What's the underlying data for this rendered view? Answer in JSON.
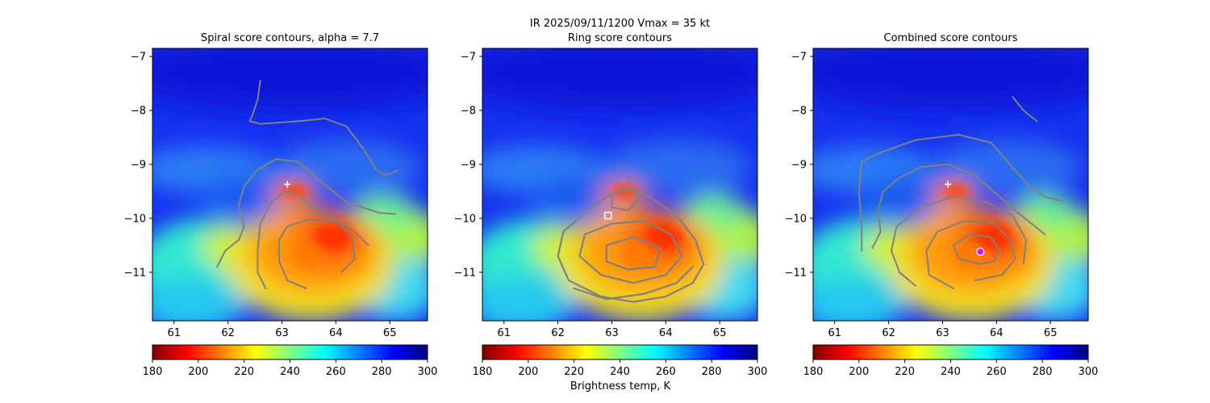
{
  "figure": {
    "suptitle_line1": "IR  2025/09/11/1200    Vmax = 35 kt",
    "colorbar_label": "Brightness temp, K"
  },
  "colormap": {
    "name": "jet_r",
    "stops": [
      "#800000",
      "#ff0000",
      "#ff8000",
      "#ffff00",
      "#80ff80",
      "#00ffff",
      "#0080ff",
      "#0000ff",
      "#000080"
    ]
  },
  "colors": {
    "contour": "#808080",
    "marker_cross": "#ffffff",
    "marker_square": "#ffffff",
    "marker_center": "#ff00ff"
  },
  "chart_data": [
    {
      "type": "heatmap",
      "title": "Spiral score contours, alpha =  7.7",
      "xlim": [
        60.6,
        65.7
      ],
      "ylim": [
        -11.9,
        -6.85
      ],
      "xticks": [
        61,
        62,
        63,
        64,
        65
      ],
      "yticks": [
        -7,
        -8,
        -9,
        -10,
        -11
      ],
      "colorbar": {
        "range": [
          180,
          300
        ],
        "ticks": [
          180,
          200,
          220,
          240,
          260,
          280,
          300
        ]
      },
      "markers": [
        {
          "kind": "cross",
          "x": 63.1,
          "y": -9.37
        }
      ],
      "contours": [
        [
          [
            62.6,
            -7.45
          ],
          [
            62.55,
            -7.8
          ],
          [
            62.45,
            -8.1
          ],
          [
            62.4,
            -8.2
          ],
          [
            62.6,
            -8.25
          ],
          [
            63.3,
            -8.2
          ],
          [
            63.8,
            -8.15
          ],
          [
            64.2,
            -8.3
          ],
          [
            64.5,
            -8.7
          ],
          [
            64.75,
            -9.1
          ],
          [
            64.9,
            -9.2
          ],
          [
            65.15,
            -9.12
          ]
        ],
        [
          [
            61.8,
            -10.9
          ],
          [
            61.95,
            -10.6
          ],
          [
            62.2,
            -10.4
          ],
          [
            62.3,
            -10.15
          ],
          [
            62.2,
            -9.75
          ],
          [
            62.3,
            -9.4
          ],
          [
            62.55,
            -9.1
          ],
          [
            62.9,
            -8.9
          ],
          [
            63.3,
            -8.95
          ],
          [
            63.7,
            -9.3
          ],
          [
            64.2,
            -9.7
          ],
          [
            64.8,
            -9.9
          ],
          [
            65.1,
            -9.92
          ]
        ],
        [
          [
            62.7,
            -11.3
          ],
          [
            62.55,
            -11.0
          ],
          [
            62.55,
            -10.6
          ],
          [
            62.6,
            -10.1
          ],
          [
            62.8,
            -9.7
          ],
          [
            63.05,
            -9.5
          ],
          [
            63.35,
            -9.6
          ],
          [
            63.5,
            -9.75
          ],
          [
            63.8,
            -9.95
          ],
          [
            64.3,
            -10.2
          ],
          [
            64.6,
            -10.5
          ]
        ],
        [
          [
            63.45,
            -11.3
          ],
          [
            63.1,
            -11.15
          ],
          [
            62.95,
            -10.8
          ],
          [
            62.95,
            -10.4
          ],
          [
            63.1,
            -10.15
          ],
          [
            63.5,
            -10.02
          ],
          [
            64.0,
            -10.05
          ],
          [
            64.3,
            -10.35
          ],
          [
            64.35,
            -10.75
          ],
          [
            64.1,
            -11.0
          ]
        ]
      ]
    },
    {
      "type": "heatmap",
      "title": "Ring score contours",
      "xlim": [
        60.6,
        65.7
      ],
      "ylim": [
        -11.9,
        -6.85
      ],
      "xticks": [
        61,
        62,
        63,
        64,
        65
      ],
      "yticks": [
        -7,
        -8,
        -9,
        -10,
        -11
      ],
      "colorbar": {
        "range": [
          180,
          300
        ],
        "ticks": [
          180,
          200,
          220,
          240,
          260,
          280,
          300
        ]
      },
      "markers": [
        {
          "kind": "square",
          "x": 62.93,
          "y": -9.95
        }
      ],
      "contours": [
        [
          [
            62.9,
            -9.6
          ],
          [
            63.3,
            -9.45
          ],
          [
            63.7,
            -9.6
          ],
          [
            64.2,
            -9.95
          ],
          [
            64.55,
            -10.4
          ],
          [
            64.7,
            -10.85
          ],
          [
            64.5,
            -11.2
          ],
          [
            64.0,
            -11.45
          ],
          [
            63.4,
            -11.55
          ],
          [
            62.8,
            -11.45
          ],
          [
            62.2,
            -11.15
          ],
          [
            62.0,
            -10.7
          ],
          [
            62.1,
            -10.25
          ],
          [
            62.5,
            -9.9
          ],
          [
            62.9,
            -9.6
          ]
        ],
        [
          [
            62.5,
            -10.3
          ],
          [
            63.0,
            -10.1
          ],
          [
            63.6,
            -10.05
          ],
          [
            64.1,
            -10.3
          ],
          [
            64.3,
            -10.7
          ],
          [
            64.0,
            -11.05
          ],
          [
            63.4,
            -11.2
          ],
          [
            62.8,
            -11.05
          ],
          [
            62.4,
            -10.7
          ],
          [
            62.5,
            -10.3
          ]
        ],
        [
          [
            62.9,
            -10.5
          ],
          [
            63.4,
            -10.35
          ],
          [
            63.9,
            -10.55
          ],
          [
            63.8,
            -10.9
          ],
          [
            63.3,
            -10.95
          ],
          [
            62.9,
            -10.8
          ],
          [
            62.9,
            -10.5
          ]
        ],
        [
          [
            63.0,
            -9.55
          ],
          [
            63.4,
            -9.45
          ],
          [
            63.5,
            -9.65
          ],
          [
            63.3,
            -9.85
          ],
          [
            63.0,
            -9.8
          ],
          [
            63.0,
            -9.55
          ]
        ],
        [
          [
            62.3,
            -11.3
          ],
          [
            62.9,
            -11.5
          ],
          [
            63.6,
            -11.4
          ],
          [
            64.2,
            -11.2
          ],
          [
            64.5,
            -10.9
          ]
        ]
      ]
    },
    {
      "type": "heatmap",
      "title": "Combined score contours",
      "xlim": [
        60.6,
        65.7
      ],
      "ylim": [
        -11.9,
        -6.85
      ],
      "xticks": [
        61,
        62,
        63,
        64,
        65
      ],
      "yticks": [
        -7,
        -8,
        -9,
        -10,
        -11
      ],
      "colorbar": {
        "range": [
          180,
          300
        ],
        "ticks": [
          180,
          200,
          220,
          240,
          260,
          280,
          300
        ]
      },
      "markers": [
        {
          "kind": "cross",
          "x": 63.1,
          "y": -9.37
        },
        {
          "kind": "center",
          "x": 63.7,
          "y": -10.62
        }
      ],
      "contours": [
        [
          [
            64.3,
            -7.75
          ],
          [
            64.5,
            -8.0
          ],
          [
            64.75,
            -8.2
          ]
        ],
        [
          [
            61.5,
            -10.6
          ],
          [
            61.5,
            -10.1
          ],
          [
            61.45,
            -9.5
          ],
          [
            61.5,
            -8.95
          ],
          [
            61.8,
            -8.8
          ],
          [
            62.5,
            -8.55
          ],
          [
            63.3,
            -8.45
          ],
          [
            63.9,
            -8.6
          ],
          [
            64.25,
            -9.0
          ],
          [
            64.6,
            -9.4
          ],
          [
            64.9,
            -9.6
          ],
          [
            65.2,
            -9.68
          ]
        ],
        [
          [
            61.7,
            -10.55
          ],
          [
            61.85,
            -10.25
          ],
          [
            61.8,
            -9.85
          ],
          [
            61.9,
            -9.5
          ],
          [
            62.2,
            -9.25
          ],
          [
            62.6,
            -9.05
          ],
          [
            63.1,
            -9.0
          ],
          [
            63.6,
            -9.2
          ],
          [
            64.0,
            -9.55
          ],
          [
            64.4,
            -9.9
          ],
          [
            64.9,
            -10.3
          ]
        ],
        [
          [
            62.5,
            -11.25
          ],
          [
            62.2,
            -11.0
          ],
          [
            62.05,
            -10.6
          ],
          [
            62.15,
            -10.15
          ],
          [
            62.6,
            -9.8
          ],
          [
            63.2,
            -9.6
          ],
          [
            63.8,
            -9.7
          ],
          [
            64.3,
            -9.95
          ],
          [
            64.55,
            -10.4
          ],
          [
            64.5,
            -10.85
          ]
        ],
        [
          [
            63.2,
            -11.3
          ],
          [
            62.75,
            -11.05
          ],
          [
            62.7,
            -10.6
          ],
          [
            62.9,
            -10.25
          ],
          [
            63.4,
            -10.05
          ],
          [
            63.95,
            -10.1
          ],
          [
            64.25,
            -10.4
          ],
          [
            64.35,
            -10.75
          ],
          [
            64.1,
            -11.05
          ],
          [
            63.6,
            -11.15
          ]
        ],
        [
          [
            63.7,
            -10.85
          ],
          [
            63.3,
            -10.75
          ],
          [
            63.2,
            -10.5
          ],
          [
            63.5,
            -10.3
          ],
          [
            63.9,
            -10.35
          ],
          [
            64.05,
            -10.6
          ],
          [
            63.95,
            -10.8
          ],
          [
            63.7,
            -10.85
          ]
        ]
      ]
    }
  ]
}
